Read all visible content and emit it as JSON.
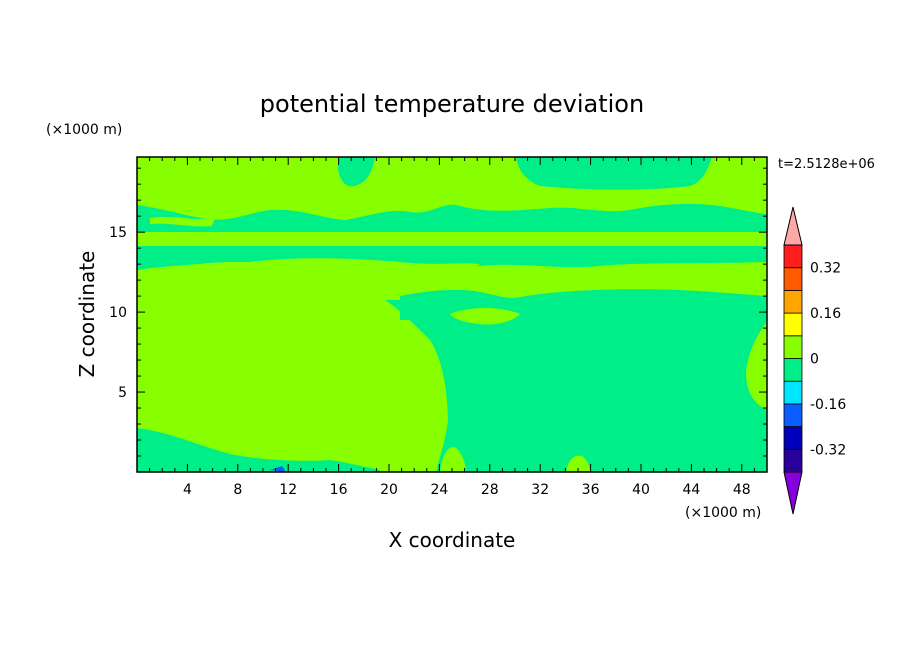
{
  "chart_data": {
    "type": "heatmap",
    "title": "potential temperature deviation",
    "xlabel": "X coordinate",
    "ylabel": "Z coordinate",
    "x_unit": "(×1000 m)",
    "y_unit": "(×1000 m)",
    "time_label": "t=2.5128e+06",
    "xlim": [
      0,
      50
    ],
    "ylim": [
      0,
      19.7
    ],
    "x_ticks": [
      4,
      8,
      12,
      16,
      20,
      24,
      28,
      32,
      36,
      40,
      44,
      48
    ],
    "y_ticks": [
      5,
      10,
      15
    ],
    "colorbar": {
      "levels": [
        -0.4,
        -0.32,
        -0.24,
        -0.16,
        -0.08,
        0,
        0.08,
        0.16,
        0.24,
        0.32,
        0.4
      ],
      "colors": [
        "#8800dd",
        "#2a0099",
        "#0000bb",
        "#0a5dff",
        "#00e5ff",
        "#00ee88",
        "#88ff00",
        "#ffff00",
        "#ffa500",
        "#ff5a00",
        "#ff1e1e",
        "#ffa8a8"
      ],
      "labels": [
        "0.32",
        "0.16",
        "0",
        "-0.16",
        "-0.32"
      ],
      "label_values": [
        0.32,
        0.16,
        0,
        -0.16,
        -0.32
      ],
      "extend": "both"
    },
    "field_colors": {
      "positive_small": "#88ff00",
      "negative_small": "#00ee88",
      "negative_mid": "#0a5dff"
    },
    "regions": [
      {
        "level": "negative_small",
        "description": "deep column right of x=24 from surface to ~12"
      },
      {
        "level": "negative_small",
        "description": "bands near z=13-14.5 and z=15.5-17"
      },
      {
        "level": "positive_small",
        "description": "left half of domain below z=12 and upper layer above z=17"
      }
    ]
  }
}
